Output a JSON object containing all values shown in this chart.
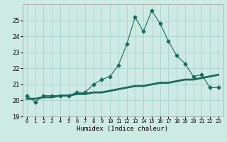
{
  "title": "",
  "xlabel": "Humidex (Indice chaleur)",
  "background_color": "#ceeae4",
  "grid_color": "#aad4cc",
  "line_color": "#1a6b5a",
  "humidex_values": [
    20.3,
    19.9,
    20.3,
    20.3,
    20.3,
    20.3,
    20.5,
    20.5,
    21.0,
    21.3,
    21.5,
    22.2,
    23.5,
    25.2,
    24.3,
    25.6,
    24.8,
    23.7,
    22.8,
    22.3,
    21.5,
    21.6,
    20.8,
    20.8
  ],
  "smooth_values": [
    20.1,
    20.1,
    20.2,
    20.2,
    20.3,
    20.3,
    20.4,
    20.4,
    20.5,
    20.5,
    20.6,
    20.7,
    20.8,
    20.9,
    20.9,
    21.0,
    21.1,
    21.1,
    21.2,
    21.3,
    21.3,
    21.4,
    21.5,
    21.6
  ],
  "x_labels": [
    "0",
    "1",
    "2",
    "3",
    "4",
    "5",
    "6",
    "7",
    "8",
    "9",
    "10",
    "11",
    "12",
    "13",
    "14",
    "15",
    "16",
    "17",
    "18",
    "19",
    "20",
    "21",
    "22",
    "23"
  ],
  "ylim": [
    19.0,
    26.0
  ],
  "yticks": [
    19,
    20,
    21,
    22,
    23,
    24,
    25
  ],
  "marker_size": 2.5
}
